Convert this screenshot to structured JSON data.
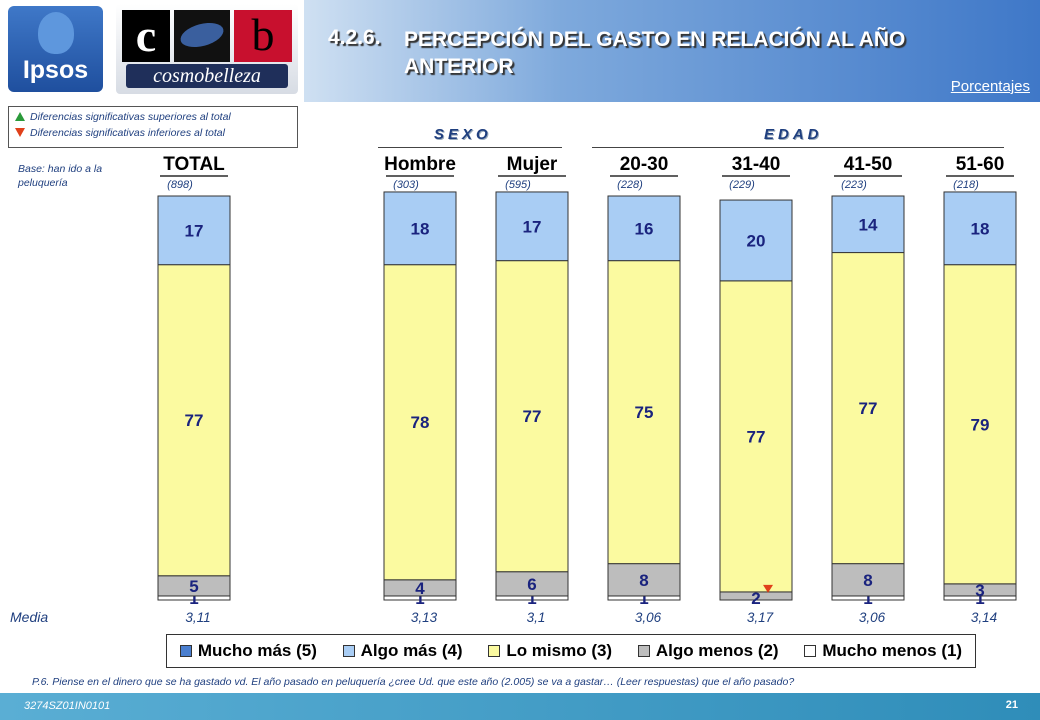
{
  "header": {
    "logo_ipsos": "Ipsos",
    "logo_cosmo_word": "cosmobelleza",
    "logo_cosmo_c": "c",
    "logo_cosmo_b": "b",
    "section_number": "4.2.6.",
    "title": "PERCEPCIÓN DEL GASTO EN RELACIÓN AL AÑO ANTERIOR",
    "unit_link": "Porcentajes"
  },
  "significance_legend": {
    "higher": "Diferencias significativas superiores al total",
    "lower": "Diferencias significativas inferiores al total",
    "higher_color": "#2a9a3a",
    "lower_color": "#e0401a"
  },
  "base_label": "Base: han ido a la peluquería",
  "groups": {
    "sexo": "SEXO",
    "edad": "EDAD"
  },
  "media_label": "Media",
  "chart_data": {
    "type": "bar",
    "stacked": true,
    "orientation": "vertical",
    "ylim": [
      0,
      100
    ],
    "categories": [
      "TOTAL",
      "Hombre",
      "Mujer",
      "20-30",
      "31-40",
      "41-50",
      "51-60"
    ],
    "bases": [
      "(898)",
      "(303)",
      "(595)",
      "(228)",
      "(229)",
      "(223)",
      "(218)"
    ],
    "media": [
      "3,11",
      "3,13",
      "3,1",
      "3,06",
      "3,17",
      "3,06",
      "3,14"
    ],
    "series": [
      {
        "name": "Mucho más (5)",
        "color": "#4a7fd0",
        "values": [
          0,
          0,
          0,
          0,
          0,
          0,
          0
        ]
      },
      {
        "name": "Algo más (4)",
        "color": "#a9cdf4",
        "values": [
          17,
          18,
          17,
          16,
          20,
          14,
          18
        ]
      },
      {
        "name": "Lo mismo (3)",
        "color": "#fbfaa0",
        "values": [
          77,
          78,
          77,
          75,
          77,
          77,
          79
        ]
      },
      {
        "name": "Algo menos (2)",
        "color": "#bdbdbd",
        "values": [
          5,
          4,
          6,
          8,
          2,
          8,
          3
        ]
      },
      {
        "name": "Mucho menos (1)",
        "color": "#ffffff",
        "values": [
          1,
          1,
          1,
          1,
          0,
          1,
          1
        ]
      }
    ],
    "significance": [
      {
        "category": "31-40",
        "series": "Algo menos (2)",
        "direction": "lower"
      }
    ]
  },
  "question": "P.6. Piense en el dinero que se ha gastado vd. El año pasado en peluquería ¿cree Ud. que este año (2.005) se va a gastar… (Leer respuestas) que el año pasado?",
  "footer": {
    "code": "3274SZ01IN0101",
    "page": "21"
  }
}
